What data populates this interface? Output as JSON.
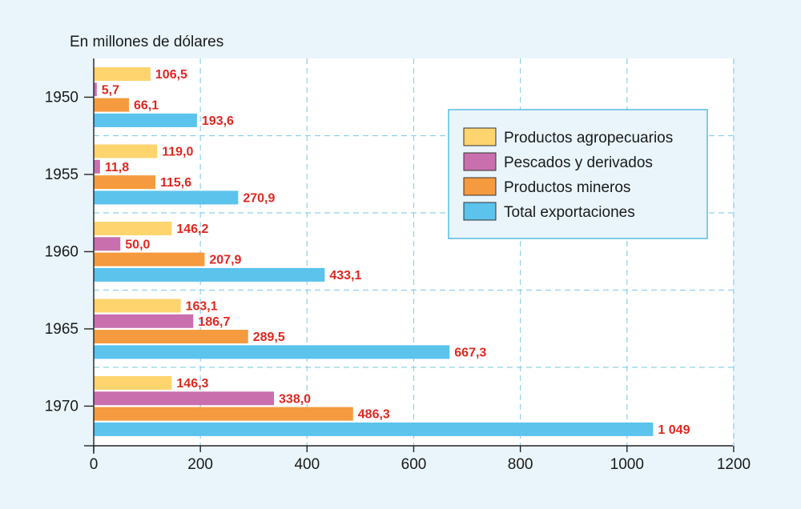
{
  "chart_data": {
    "type": "bar",
    "orientation": "horizontal",
    "unit_label": "En millones de dólares",
    "categories": [
      "1950",
      "1955",
      "1960",
      "1965",
      "1970"
    ],
    "series": [
      {
        "name": "Productos agropecuarios",
        "color": "#fdd46e",
        "values": [
          106.5,
          119.0,
          146.2,
          163.1,
          146.3
        ],
        "labels": [
          "106,5",
          "119,0",
          "146,2",
          "163,1",
          "146,3"
        ]
      },
      {
        "name": "Pescados y derivados",
        "color": "#c96fad",
        "values": [
          5.7,
          11.8,
          50.0,
          186.7,
          338.0
        ],
        "labels": [
          "5,7",
          "11,8",
          "50,0",
          "186,7",
          "338,0"
        ]
      },
      {
        "name": "Productos mineros",
        "color": "#f59a3e",
        "values": [
          66.1,
          115.6,
          207.9,
          289.5,
          486.3
        ],
        "labels": [
          "66,1",
          "115,6",
          "207,9",
          "289,5",
          "486,3"
        ]
      },
      {
        "name": "Total exportaciones",
        "color": "#5bc3ec",
        "values": [
          193.6,
          270.9,
          433.1,
          667.3,
          1049
        ],
        "labels": [
          "193,6",
          "270,9",
          "433,1",
          "667,3",
          "1 049"
        ]
      }
    ],
    "xlim": [
      0,
      1200
    ],
    "xticks": [
      "0",
      "200",
      "400",
      "600",
      "800",
      "1000",
      "1200"
    ],
    "grid": true,
    "legend_position": "top-right",
    "value_label_color": "#e0281f"
  }
}
